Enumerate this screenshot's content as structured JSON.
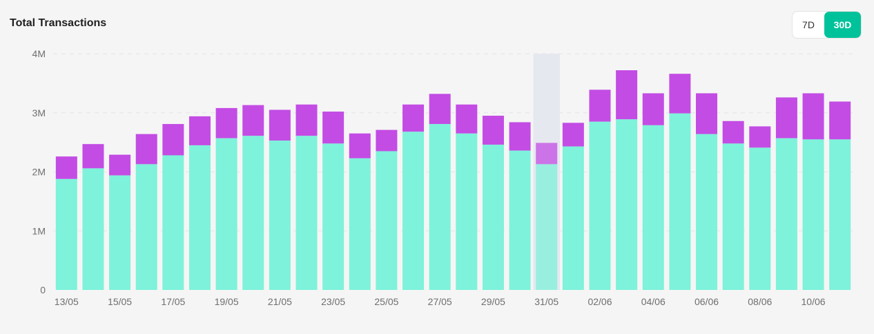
{
  "header": {
    "title": "Total Transactions"
  },
  "range_toggle": {
    "options": [
      "7D",
      "30D"
    ],
    "selected": "30D"
  },
  "colors": {
    "base": "#7ef2da",
    "top": "#c34ce4",
    "accent": "#00c29a",
    "highlight": "#e6e8ef"
  },
  "chart_data": {
    "type": "bar",
    "stacked": true,
    "title": "Total Transactions",
    "xlabel": "",
    "ylabel": "",
    "ylim": [
      0,
      4000000
    ],
    "y_ticks": [
      {
        "value": 0,
        "label": "0"
      },
      {
        "value": 1000000,
        "label": "1M"
      },
      {
        "value": 2000000,
        "label": "2M"
      },
      {
        "value": 3000000,
        "label": "3M"
      },
      {
        "value": 4000000,
        "label": "4M"
      }
    ],
    "categories": [
      "13/05",
      "14/05",
      "15/05",
      "16/05",
      "17/05",
      "18/05",
      "19/05",
      "20/05",
      "21/05",
      "22/05",
      "23/05",
      "24/05",
      "25/05",
      "26/05",
      "27/05",
      "28/05",
      "29/05",
      "30/05",
      "31/05",
      "01/06",
      "02/06",
      "03/06",
      "04/06",
      "05/06",
      "06/06",
      "07/06",
      "08/06",
      "09/06",
      "10/06",
      "11/06"
    ],
    "x_tick_labels": [
      "13/05",
      "15/05",
      "17/05",
      "19/05",
      "21/05",
      "23/05",
      "25/05",
      "27/05",
      "29/05",
      "31/05",
      "02/06",
      "04/06",
      "06/06",
      "08/06",
      "10/06"
    ],
    "highlighted_category": "31/05",
    "series": [
      {
        "name": "base",
        "values": [
          1880000,
          2060000,
          1940000,
          2130000,
          2280000,
          2450000,
          2570000,
          2610000,
          2530000,
          2610000,
          2480000,
          2230000,
          2350000,
          2680000,
          2810000,
          2650000,
          2460000,
          2360000,
          2130000,
          2430000,
          2850000,
          2890000,
          2790000,
          2990000,
          2640000,
          2480000,
          2410000,
          2570000,
          2550000,
          2550000
        ]
      },
      {
        "name": "top",
        "values": [
          380000,
          410000,
          350000,
          510000,
          530000,
          490000,
          510000,
          520000,
          520000,
          530000,
          540000,
          420000,
          360000,
          460000,
          510000,
          490000,
          490000,
          480000,
          360000,
          400000,
          540000,
          830000,
          540000,
          670000,
          690000,
          380000,
          360000,
          690000,
          780000,
          640000
        ]
      }
    ]
  }
}
